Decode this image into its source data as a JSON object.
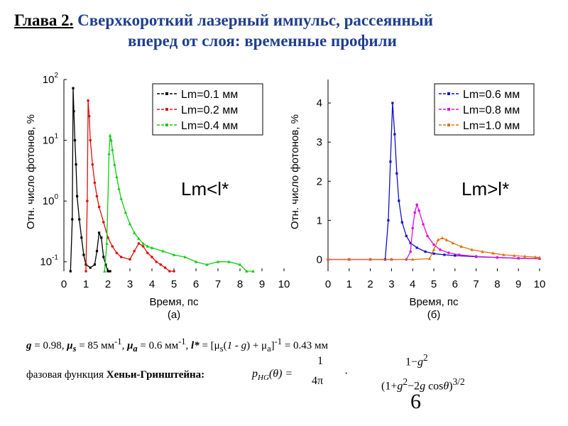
{
  "title": {
    "chapter": "Глава 2.",
    "line1": "Сверхкороткий лазерный импульс, рассеянный",
    "line2": "вперед от слоя: временные профили"
  },
  "parameters_text": "g = 0.98, μs = 85 мм-1, μa = 0.6 мм-1, l* = [μs(1 - g) + μa]-1 = 0.43 мм",
  "phase_label": "фазовая функция",
  "phase_name": "Хеньи-Гринштейна:",
  "formula": {
    "lhs": "pHG(θ) =",
    "frac1_num": "1",
    "frac1_den": "4π",
    "dot": "·",
    "frac2_num": "1−g2",
    "frac2_den": "(1+g2−2g cosθ)3/2"
  },
  "page_number": "6",
  "chart_data": [
    {
      "type": "line",
      "panel_label": "(a)",
      "xlabel": "Время, пс",
      "ylabel": "Отн. число фотонов, %",
      "y_scale": "log",
      "xlim": [
        0,
        10
      ],
      "ylim": [
        0.07,
        100
      ],
      "x_ticks": [
        "0",
        "1",
        "2",
        "3",
        "4",
        "5",
        "6",
        "7",
        "8",
        "9",
        "10"
      ],
      "y_ticks": [
        {
          "base": "10",
          "exp": "2"
        },
        {
          "base": "10",
          "exp": "1"
        },
        {
          "base": "10",
          "exp": "0"
        },
        {
          "base": "10",
          "exp": "-1"
        }
      ],
      "annotation": "Lm<l*",
      "legend_position": "top-right",
      "series": [
        {
          "name": "Lm=0.1 мм",
          "color": "#000000",
          "marker": "square",
          "x": [
            0.3,
            0.38,
            0.42,
            0.45,
            0.5,
            0.55,
            0.6,
            0.7,
            0.8,
            0.9,
            1.0,
            1.2,
            1.4,
            1.5,
            1.6,
            1.7,
            1.8,
            1.9,
            2.0,
            2.1
          ],
          "y": [
            0.07,
            0.5,
            72,
            30,
            10,
            4,
            1.2,
            0.5,
            0.25,
            0.13,
            0.09,
            0.08,
            0.09,
            0.15,
            0.3,
            0.25,
            0.12,
            0.09,
            0.07,
            0.05
          ]
        },
        {
          "name": "Lm=0.2 мм",
          "color": "#e01010",
          "marker": "circle",
          "x": [
            1.0,
            1.06,
            1.1,
            1.15,
            1.2,
            1.3,
            1.4,
            1.5,
            1.6,
            1.8,
            2.0,
            2.2,
            2.4,
            2.6,
            3.0,
            3.2,
            3.4,
            3.6,
            3.8,
            4.0,
            4.2,
            4.4,
            4.6,
            4.8,
            5.0
          ],
          "y": [
            0.07,
            1.0,
            45,
            25,
            10,
            4,
            2,
            1.2,
            0.8,
            0.45,
            0.25,
            0.18,
            0.14,
            0.12,
            0.11,
            0.15,
            0.2,
            0.18,
            0.14,
            0.12,
            0.1,
            0.09,
            0.08,
            0.07,
            0.06
          ]
        },
        {
          "name": "Lm=0.4 мм",
          "color": "#10cc10",
          "marker": "triangle",
          "x": [
            1.85,
            1.95,
            2.05,
            2.1,
            2.15,
            2.2,
            2.3,
            2.4,
            2.5,
            2.6,
            2.8,
            3.0,
            3.2,
            3.4,
            3.6,
            3.8,
            4.0,
            4.5,
            5.0,
            5.5,
            6.0,
            6.5,
            7.0,
            7.5,
            8.0,
            8.3,
            8.6
          ],
          "y": [
            0.07,
            0.2,
            6,
            12,
            10,
            7,
            4,
            2.5,
            1.6,
            1.1,
            0.65,
            0.42,
            0.3,
            0.24,
            0.2,
            0.18,
            0.17,
            0.15,
            0.13,
            0.12,
            0.1,
            0.09,
            0.1,
            0.1,
            0.09,
            0.07,
            0.05
          ]
        }
      ]
    },
    {
      "type": "line",
      "panel_label": "(б)",
      "xlabel": "Время, пс",
      "ylabel": "Отн. число фотонов, %",
      "y_scale": "linear",
      "xlim": [
        0,
        10
      ],
      "ylim": [
        -0.3,
        4.6
      ],
      "x_ticks": [
        "0",
        "1",
        "2",
        "3",
        "4",
        "5",
        "6",
        "7",
        "8",
        "9",
        "10"
      ],
      "y_ticks": [
        "0",
        "1",
        "2",
        "3",
        "4"
      ],
      "annotation": "Lm>l*",
      "legend_position": "top-right",
      "series": [
        {
          "name": "Lm=0.6 мм",
          "color": "#1010cc",
          "marker": "square",
          "x": [
            0,
            1,
            2,
            2.7,
            2.85,
            2.95,
            3.05,
            3.15,
            3.25,
            3.35,
            3.5,
            3.7,
            3.9,
            4.2,
            4.6,
            5.0,
            5.5,
            6.0,
            7.0,
            8.0,
            9.0,
            10.0
          ],
          "y": [
            0,
            0,
            0,
            0,
            1.0,
            2.5,
            4.0,
            3.2,
            2.2,
            1.5,
            0.95,
            0.6,
            0.42,
            0.3,
            0.2,
            0.15,
            0.12,
            0.1,
            0.07,
            0.05,
            0.03,
            0.02
          ]
        },
        {
          "name": "Lm=0.8 мм",
          "color": "#e010e0",
          "marker": "circle",
          "x": [
            0,
            1,
            2,
            3,
            3.7,
            3.9,
            4.0,
            4.1,
            4.2,
            4.3,
            4.5,
            4.7,
            5.0,
            5.3,
            5.7,
            6.2,
            7.0,
            8.0,
            9.0,
            10.0
          ],
          "y": [
            0,
            0,
            0,
            0,
            0,
            0.2,
            0.8,
            1.2,
            1.4,
            1.25,
            0.9,
            0.6,
            0.38,
            0.25,
            0.17,
            0.12,
            0.08,
            0.05,
            0.03,
            0.02
          ]
        },
        {
          "name": "Lm=1.0 мм",
          "color": "#e07010",
          "marker": "triangle",
          "x": [
            0,
            1,
            2,
            3,
            4,
            4.8,
            5.0,
            5.2,
            5.4,
            5.6,
            5.9,
            6.3,
            6.8,
            7.3,
            7.8,
            8.3,
            8.8,
            9.3,
            9.8,
            10.0
          ],
          "y": [
            0,
            0,
            0,
            0,
            0,
            0.02,
            0.25,
            0.5,
            0.55,
            0.5,
            0.42,
            0.33,
            0.25,
            0.2,
            0.16,
            0.12,
            0.1,
            0.08,
            0.06,
            0.05
          ]
        }
      ]
    }
  ]
}
